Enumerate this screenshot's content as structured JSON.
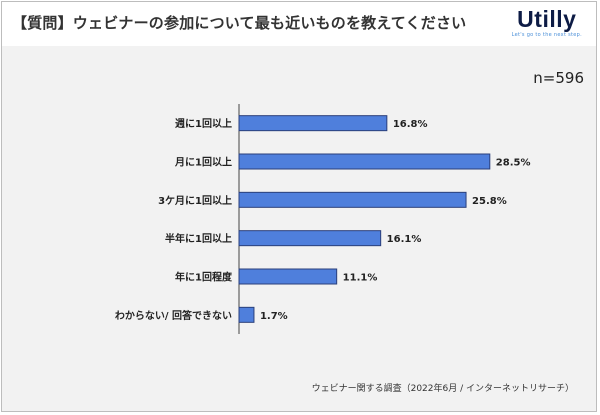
{
  "header": {
    "title": "【質問】ウェビナーの参加について最も近いものを教えてください",
    "logo_text": "Utilly",
    "logo_tagline": "Let's go to the next step."
  },
  "sample_size": "n=596",
  "source": "ウェビナー関する調査（2022年6月 / インターネットリサーチ）",
  "colors": {
    "bar_fill": "#4f7fdc",
    "bar_stroke": "#2b3f7a",
    "background": "#f2f2f2",
    "axis": "#444444"
  },
  "chart_data": {
    "type": "bar",
    "orientation": "horizontal",
    "categories": [
      "週に1回以上",
      "月に1回以上",
      "3ケ月に1回以上",
      "半年に1回以上",
      "年に1回程度",
      "わからない/ 回答できない"
    ],
    "values": [
      16.8,
      28.5,
      25.8,
      16.1,
      11.1,
      1.7
    ],
    "data_labels": [
      "16.8%",
      "28.5%",
      "25.8%",
      "16.1%",
      "11.1%",
      "1.7%"
    ],
    "xlim": [
      0,
      30
    ],
    "grid": false,
    "legend": "none"
  }
}
